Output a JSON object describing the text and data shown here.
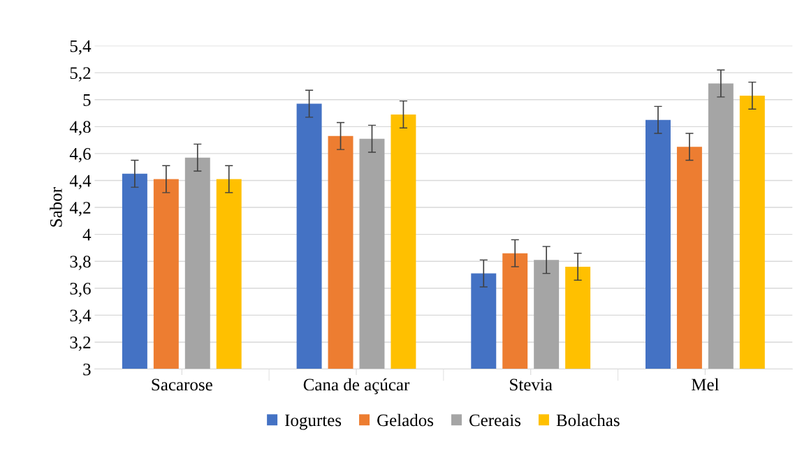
{
  "chart_data": {
    "type": "bar",
    "ylabel": "Sabor",
    "categories": [
      "Sacarose",
      "Cana de açúcar",
      "Stevia",
      "Mel"
    ],
    "series": [
      {
        "name": "Iogurtes",
        "color": "#4472c4",
        "values": [
          4.45,
          4.97,
          3.71,
          4.85
        ],
        "errors": [
          0.1,
          0.1,
          0.1,
          0.1
        ]
      },
      {
        "name": "Gelados",
        "color": "#ed7d31",
        "values": [
          4.41,
          4.73,
          3.86,
          4.65
        ],
        "errors": [
          0.1,
          0.1,
          0.1,
          0.1
        ]
      },
      {
        "name": "Cereais",
        "color": "#a5a5a5",
        "values": [
          4.57,
          4.71,
          3.81,
          5.12
        ],
        "errors": [
          0.1,
          0.1,
          0.1,
          0.1
        ]
      },
      {
        "name": "Bolachas",
        "color": "#ffc000",
        "values": [
          4.41,
          4.89,
          3.76,
          5.03
        ],
        "errors": [
          0.1,
          0.1,
          0.1,
          0.1
        ]
      }
    ],
    "ylim": [
      3,
      5.4
    ],
    "yticks": [
      3,
      {
        "value": 3.2,
        "label": "3,2"
      },
      {
        "value": 3.4,
        "label": "3,4"
      },
      {
        "value": 3.6,
        "label": "3,6"
      },
      {
        "value": 3.8,
        "label": "3,8"
      },
      4,
      {
        "value": 4.2,
        "label": "4,2"
      },
      {
        "value": 4.4,
        "label": "4,4"
      },
      {
        "value": 4.6,
        "label": "4,6"
      },
      {
        "value": 4.8,
        "label": "4,8"
      },
      5,
      {
        "value": 5.2,
        "label": "5,2"
      },
      {
        "value": 5.4,
        "label": "5,4"
      }
    ],
    "grid": "y",
    "legend": "bottom"
  }
}
